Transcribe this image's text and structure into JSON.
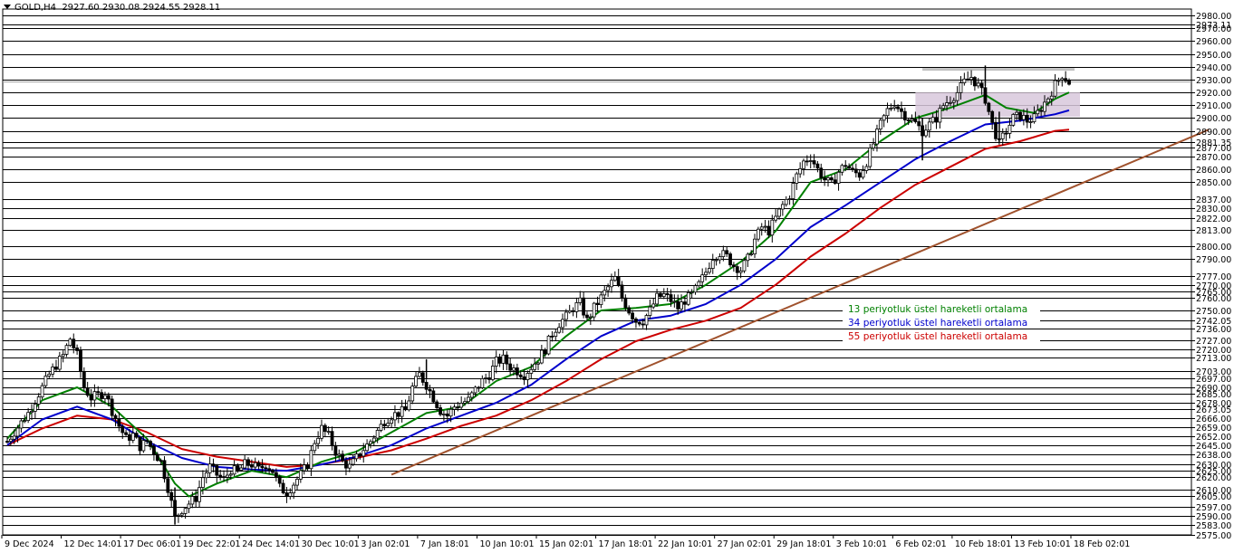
{
  "header": {
    "symbol": "GOLD,H4",
    "ohlc": "2927.60 2930.08 2924.55 2928.11"
  },
  "colors": {
    "background": "#ffffff",
    "grid": "#000000",
    "candle": "#000000",
    "ema13": "#008000",
    "ema34": "#0000cc",
    "ema55": "#cc0000",
    "trendline": "#a0522d",
    "range_box": "#d8c8dc",
    "resistance": "#c0c0c0",
    "current_price_line": "#a0a0a0"
  },
  "chart_data": {
    "type": "candlestick",
    "symbol": "GOLD",
    "timeframe": "H4",
    "ylim": [
      2575,
      2985
    ],
    "y_tick_labels": [
      "2980.00",
      "2973.11",
      "2970.00",
      "2960.00",
      "2950.00",
      "2940.00",
      "2930.00",
      "2920.00",
      "2910.00",
      "2900.00",
      "2890.00",
      "2881.35",
      "2877.00",
      "2870.00",
      "2860.00",
      "2850.00",
      "2837.00",
      "2830.00",
      "2822.00",
      "2813.00",
      "2800.00",
      "2790.00",
      "2777.00",
      "2770.00",
      "2765.00",
      "2760.00",
      "2750.00",
      "2742.05",
      "2736.00",
      "2727.00",
      "2720.00",
      "2713.00",
      "2703.00",
      "2697.00",
      "2690.00",
      "2685.00",
      "2678.00",
      "2673.05",
      "2666.00",
      "2659.00",
      "2652.00",
      "2645.00",
      "2638.00",
      "2630.00",
      "2625.00",
      "2620.00",
      "2610.00",
      "2605.00",
      "2597.00",
      "2590.00",
      "2583.00",
      "2575.00"
    ],
    "x_tick_labels": [
      "9 Dec 2024",
      "12 Dec 14:01",
      "17 Dec 06:01",
      "19 Dec 22:01",
      "24 Dec 14:01",
      "30 Dec 10:01",
      "3 Jan 02:01",
      "7 Jan 18:01",
      "10 Jan 10:01",
      "15 Jan 02:01",
      "17 Jan 18:01",
      "22 Jan 10:01",
      "27 Jan 02:01",
      "29 Jan 18:01",
      "3 Feb 10:01",
      "6 Feb 02:01",
      "10 Feb 18:01",
      "13 Feb 10:01",
      "18 Feb 02:01"
    ],
    "legend": [
      {
        "label": "13 periyotluk üstel hareketli ortalama",
        "color": "#008000"
      },
      {
        "label": "34 periyotluk üstel hareketli ortalama",
        "color": "#0000cc"
      },
      {
        "label": "55 periyotluk üstel hareketli ortalama",
        "color": "#cc0000"
      }
    ],
    "close_path": [
      [
        0,
        2648
      ],
      [
        3,
        2670
      ],
      [
        5,
        2690
      ],
      [
        6,
        2700
      ],
      [
        8,
        2715
      ],
      [
        9,
        2728
      ],
      [
        10,
        2715
      ],
      [
        11,
        2690
      ],
      [
        12,
        2682
      ],
      [
        14,
        2686
      ],
      [
        15,
        2672
      ],
      [
        16,
        2660
      ],
      [
        17,
        2650
      ],
      [
        18,
        2653
      ],
      [
        19,
        2644
      ],
      [
        20,
        2648
      ],
      [
        21,
        2640
      ],
      [
        22,
        2632
      ],
      [
        23,
        2612
      ],
      [
        24,
        2588
      ],
      [
        25,
        2595
      ],
      [
        27,
        2604
      ],
      [
        28,
        2620
      ],
      [
        29,
        2628
      ],
      [
        30,
        2622
      ],
      [
        31,
        2618
      ],
      [
        32,
        2626
      ],
      [
        33,
        2624
      ],
      [
        34,
        2630
      ],
      [
        35,
        2630
      ],
      [
        36,
        2626
      ],
      [
        37,
        2630
      ],
      [
        38,
        2625
      ],
      [
        39,
        2612
      ],
      [
        40,
        2608
      ],
      [
        41,
        2615
      ],
      [
        42,
        2622
      ],
      [
        43,
        2630
      ],
      [
        44,
        2648
      ],
      [
        45,
        2658
      ],
      [
        46,
        2652
      ],
      [
        47,
        2640
      ],
      [
        48,
        2632
      ],
      [
        49,
        2628
      ],
      [
        50,
        2635
      ],
      [
        51,
        2642
      ],
      [
        52,
        2648
      ],
      [
        53,
        2656
      ],
      [
        54,
        2664
      ],
      [
        55,
        2668
      ],
      [
        57,
        2672
      ],
      [
        58,
        2690
      ],
      [
        59,
        2700
      ],
      [
        60,
        2692
      ],
      [
        62,
        2672
      ],
      [
        63,
        2668
      ],
      [
        64,
        2675
      ],
      [
        65,
        2678
      ],
      [
        66,
        2680
      ],
      [
        67,
        2688
      ],
      [
        68,
        2695
      ],
      [
        69,
        2700
      ],
      [
        70,
        2710
      ],
      [
        71,
        2712
      ],
      [
        72,
        2706
      ],
      [
        74,
        2700
      ],
      [
        75,
        2706
      ],
      [
        76,
        2712
      ],
      [
        77,
        2720
      ],
      [
        78,
        2732
      ],
      [
        79,
        2740
      ],
      [
        80,
        2745
      ],
      [
        81,
        2752
      ],
      [
        82,
        2756
      ],
      [
        83,
        2742
      ],
      [
        84,
        2752
      ],
      [
        85,
        2760
      ],
      [
        86,
        2768
      ],
      [
        87,
        2775
      ],
      [
        88,
        2760
      ],
      [
        89,
        2750
      ],
      [
        90,
        2742
      ],
      [
        91,
        2742
      ],
      [
        92,
        2750
      ],
      [
        93,
        2760
      ],
      [
        94,
        2762
      ],
      [
        95,
        2758
      ],
      [
        96,
        2752
      ],
      [
        97,
        2758
      ],
      [
        98,
        2762
      ],
      [
        99,
        2770
      ],
      [
        100,
        2780
      ],
      [
        101,
        2792
      ],
      [
        102,
        2795
      ],
      [
        103,
        2792
      ],
      [
        104,
        2785
      ],
      [
        105,
        2782
      ],
      [
        106,
        2790
      ],
      [
        107,
        2805
      ],
      [
        108,
        2815
      ],
      [
        109,
        2812
      ],
      [
        110,
        2822
      ],
      [
        111,
        2832
      ],
      [
        112,
        2840
      ],
      [
        113,
        2855
      ],
      [
        114,
        2866
      ],
      [
        115,
        2870
      ],
      [
        116,
        2860
      ],
      [
        117,
        2852
      ],
      [
        118,
        2848
      ],
      [
        119,
        2858
      ],
      [
        120,
        2864
      ],
      [
        121,
        2858
      ],
      [
        122,
        2856
      ],
      [
        123,
        2866
      ],
      [
        124,
        2880
      ],
      [
        125,
        2895
      ],
      [
        126,
        2906
      ],
      [
        127,
        2912
      ],
      [
        128,
        2905
      ],
      [
        129,
        2900
      ],
      [
        130,
        2896
      ],
      [
        131,
        2890
      ],
      [
        132,
        2895
      ],
      [
        133,
        2900
      ],
      [
        134,
        2910
      ],
      [
        135,
        2915
      ],
      [
        136,
        2920
      ],
      [
        137,
        2928
      ],
      [
        138,
        2932
      ],
      [
        139,
        2925
      ],
      [
        140,
        2915
      ],
      [
        141,
        2895
      ],
      [
        142,
        2880
      ],
      [
        143,
        2890
      ],
      [
        144,
        2900
      ],
      [
        145,
        2902
      ],
      [
        146,
        2898
      ],
      [
        147,
        2900
      ],
      [
        148,
        2908
      ],
      [
        149,
        2916
      ],
      [
        150,
        2926
      ],
      [
        151,
        2934
      ],
      [
        152,
        2928
      ]
    ],
    "ema13_path": [
      [
        0,
        2650
      ],
      [
        5,
        2680
      ],
      [
        10,
        2690
      ],
      [
        15,
        2675
      ],
      [
        20,
        2650
      ],
      [
        24,
        2615
      ],
      [
        26,
        2605
      ],
      [
        30,
        2615
      ],
      [
        35,
        2625
      ],
      [
        40,
        2620
      ],
      [
        45,
        2632
      ],
      [
        50,
        2640
      ],
      [
        55,
        2655
      ],
      [
        60,
        2670
      ],
      [
        65,
        2675
      ],
      [
        70,
        2695
      ],
      [
        75,
        2706
      ],
      [
        80,
        2730
      ],
      [
        85,
        2750
      ],
      [
        90,
        2752
      ],
      [
        95,
        2755
      ],
      [
        100,
        2770
      ],
      [
        105,
        2788
      ],
      [
        110,
        2812
      ],
      [
        115,
        2850
      ],
      [
        120,
        2860
      ],
      [
        125,
        2882
      ],
      [
        130,
        2900
      ],
      [
        135,
        2908
      ],
      [
        140,
        2918
      ],
      [
        143,
        2908
      ],
      [
        147,
        2904
      ],
      [
        150,
        2915
      ],
      [
        152,
        2920
      ]
    ],
    "ema34_path": [
      [
        0,
        2645
      ],
      [
        5,
        2665
      ],
      [
        10,
        2675
      ],
      [
        15,
        2665
      ],
      [
        20,
        2648
      ],
      [
        25,
        2635
      ],
      [
        30,
        2628
      ],
      [
        35,
        2626
      ],
      [
        40,
        2625
      ],
      [
        45,
        2630
      ],
      [
        50,
        2636
      ],
      [
        55,
        2645
      ],
      [
        60,
        2658
      ],
      [
        65,
        2668
      ],
      [
        70,
        2678
      ],
      [
        75,
        2692
      ],
      [
        80,
        2712
      ],
      [
        85,
        2730
      ],
      [
        90,
        2742
      ],
      [
        95,
        2746
      ],
      [
        100,
        2755
      ],
      [
        105,
        2770
      ],
      [
        110,
        2790
      ],
      [
        115,
        2815
      ],
      [
        120,
        2832
      ],
      [
        125,
        2850
      ],
      [
        130,
        2868
      ],
      [
        135,
        2882
      ],
      [
        140,
        2895
      ],
      [
        145,
        2898
      ],
      [
        150,
        2903
      ],
      [
        152,
        2906
      ]
    ],
    "ema55_path": [
      [
        0,
        2645
      ],
      [
        5,
        2658
      ],
      [
        10,
        2668
      ],
      [
        15,
        2665
      ],
      [
        20,
        2655
      ],
      [
        25,
        2642
      ],
      [
        30,
        2636
      ],
      [
        35,
        2632
      ],
      [
        40,
        2628
      ],
      [
        45,
        2630
      ],
      [
        50,
        2635
      ],
      [
        55,
        2641
      ],
      [
        60,
        2650
      ],
      [
        65,
        2660
      ],
      [
        70,
        2668
      ],
      [
        75,
        2680
      ],
      [
        80,
        2695
      ],
      [
        85,
        2712
      ],
      [
        90,
        2726
      ],
      [
        95,
        2735
      ],
      [
        100,
        2742
      ],
      [
        105,
        2752
      ],
      [
        110,
        2770
      ],
      [
        115,
        2792
      ],
      [
        120,
        2810
      ],
      [
        125,
        2830
      ],
      [
        130,
        2848
      ],
      [
        135,
        2862
      ],
      [
        140,
        2876
      ],
      [
        145,
        2882
      ],
      [
        150,
        2890
      ],
      [
        152,
        2891
      ]
    ],
    "trendline": [
      [
        55,
        2622
      ],
      [
        172,
        2891
      ]
    ],
    "range_box": {
      "x0": 130,
      "x1": 152,
      "y_top": 2920,
      "y_bottom": 2901
    },
    "resistance_line": {
      "x0": 131,
      "x1": 152,
      "y": 2938
    }
  }
}
